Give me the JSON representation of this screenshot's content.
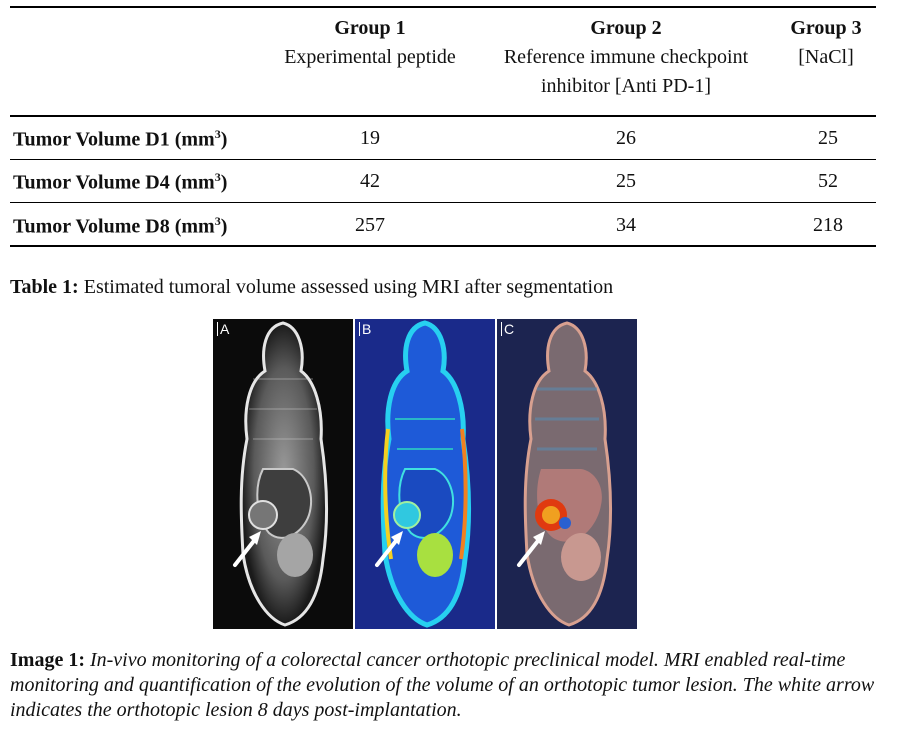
{
  "table": {
    "columns": [
      {
        "group": "Group 1",
        "desc_lines": [
          "Experimental peptide"
        ]
      },
      {
        "group": "Group 2",
        "desc_lines": [
          "Reference immune checkpoint",
          "inhibitor [Anti PD-1]"
        ]
      },
      {
        "group": "Group 3",
        "desc_lines": [
          "[NaCl]"
        ]
      }
    ],
    "rows": [
      {
        "label": "Tumor Volume D1 (mm",
        "unit_sup": "3",
        "label_end": ")",
        "values": [
          "19",
          "26",
          "25"
        ]
      },
      {
        "label": "Tumor Volume D4 (mm",
        "unit_sup": "3",
        "label_end": ")",
        "values": [
          "42",
          "25",
          "52"
        ]
      },
      {
        "label": "Tumor Volume D8 (mm",
        "unit_sup": "3",
        "label_end": ")",
        "values": [
          "257",
          "34",
          "218"
        ]
      }
    ]
  },
  "table_caption": {
    "prefix": "Table 1:",
    "text": " Estimated tumoral volume assessed using MRI after segmentation"
  },
  "figure": {
    "panels": [
      {
        "label": "A"
      },
      {
        "label": "B"
      },
      {
        "label": "C"
      }
    ]
  },
  "image_caption": {
    "prefix": "Image 1:",
    "text": " In-vivo monitoring of a colorectal cancer orthotopic preclinical model. MRI enabled real-time monitoring and quantification of the evolution of the volume of an orthotopic tumor lesion. The white arrow indicates the orthotopic lesion 8 days post-implantation."
  }
}
